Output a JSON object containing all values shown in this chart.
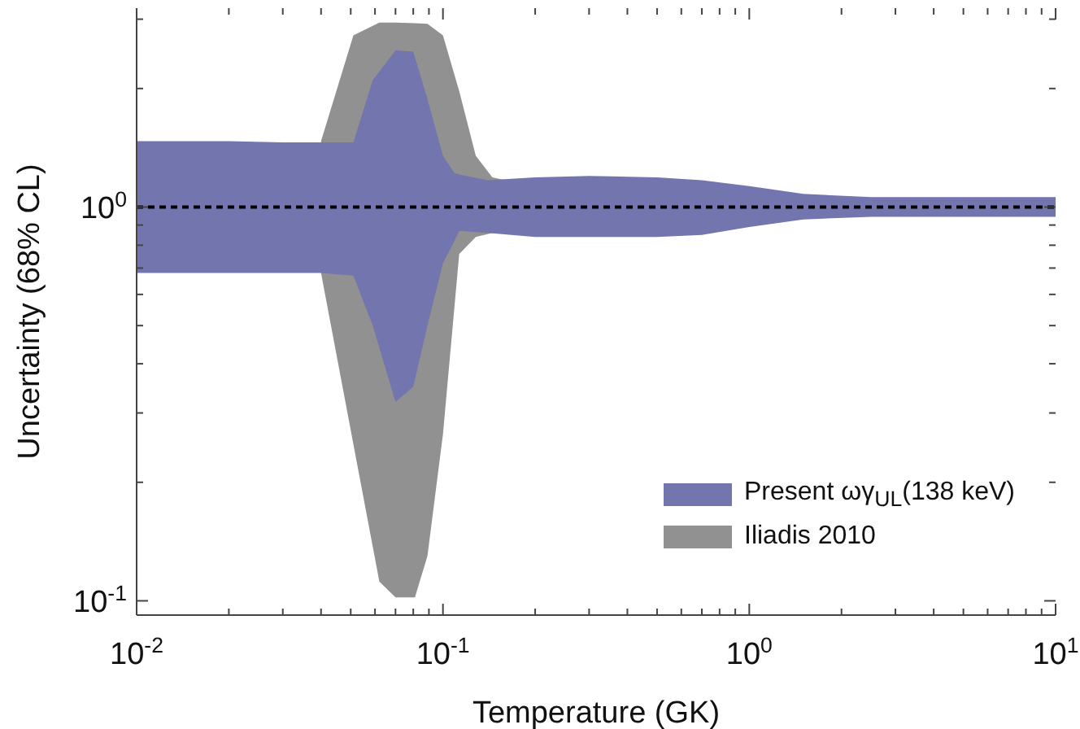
{
  "chart_data": {
    "type": "area",
    "xlabel": "Temperature (GK)",
    "ylabel": "Uncertainty (68% CL)",
    "log": "xy",
    "legend": "bottom right",
    "xlim": [
      0.01,
      10
    ],
    "ylim": [
      0.092,
      3.2
    ],
    "xticks": [
      {
        "value": 0.01,
        "label": "10$^{-2}$"
      },
      {
        "value": 0.02,
        "label": null
      },
      {
        "value": 0.03,
        "label": null
      },
      {
        "value": 0.04,
        "label": null
      },
      {
        "value": 0.05,
        "label": null
      },
      {
        "value": 0.06,
        "label": null
      },
      {
        "value": 0.07,
        "label": null
      },
      {
        "value": 0.08,
        "label": null
      },
      {
        "value": 0.09,
        "label": null
      },
      {
        "value": 0.1,
        "label": "10$^{-1}$"
      },
      {
        "value": 0.2,
        "label": null
      },
      {
        "value": 0.3,
        "label": null
      },
      {
        "value": 0.4,
        "label": null
      },
      {
        "value": 0.5,
        "label": null
      },
      {
        "value": 0.6,
        "label": null
      },
      {
        "value": 0.7,
        "label": null
      },
      {
        "value": 0.8,
        "label": null
      },
      {
        "value": 0.9,
        "label": null
      },
      {
        "value": 1,
        "label": "10$^{0}$"
      },
      {
        "value": 2,
        "label": null
      },
      {
        "value": 3,
        "label": null
      },
      {
        "value": 4,
        "label": null
      },
      {
        "value": 5,
        "label": null
      },
      {
        "value": 6,
        "label": null
      },
      {
        "value": 7,
        "label": null
      },
      {
        "value": 8,
        "label": null
      },
      {
        "value": 9,
        "label": null
      },
      {
        "value": 10,
        "label": "10$^{1}$"
      }
    ],
    "yticks": [
      {
        "value": 0.1,
        "label": "10$^{-1}$"
      },
      {
        "value": 0.2,
        "label": null
      },
      {
        "value": 0.3,
        "label": null
      },
      {
        "value": 0.4,
        "label": null
      },
      {
        "value": 0.5,
        "label": null
      },
      {
        "value": 0.6,
        "label": null
      },
      {
        "value": 0.7,
        "label": null
      },
      {
        "value": 0.8,
        "label": null
      },
      {
        "value": 0.9,
        "label": null
      },
      {
        "value": 1,
        "label": "10$^{0}$"
      },
      {
        "value": 2,
        "label": null
      },
      {
        "value": 3,
        "label": null
      }
    ],
    "series": [
      {
        "name": "Iliadis 2010",
        "color": "#909190",
        "x": [
          0.04,
          0.051,
          0.062,
          0.07,
          0.081,
          0.089,
          0.1,
          0.113,
          0.128,
          0.145,
          0.16
        ],
        "values": [
          null,
          null,
          null,
          null,
          null,
          null,
          null,
          null,
          null,
          null,
          null
        ],
        "upper": [
          1.47,
          2.73,
          2.94,
          2.94,
          2.93,
          2.92,
          2.73,
          1.97,
          1.35,
          1.19,
          1.17
        ],
        "lower": [
          0.68,
          0.25,
          0.112,
          0.102,
          0.102,
          0.13,
          0.265,
          0.76,
          0.84,
          0.86,
          0.86
        ]
      },
      {
        "name": "Present ωγ$_{UL}$(138 keV)",
        "color": "#7375ae",
        "x": [
          0.01,
          0.02,
          0.03,
          0.04,
          0.051,
          0.059,
          0.07,
          0.08,
          0.089,
          0.1,
          0.109,
          0.113,
          0.14,
          0.2,
          0.3,
          0.5,
          0.7,
          1.0,
          1.5,
          2.5,
          5,
          10
        ],
        "values": [
          null,
          null,
          null,
          null,
          null,
          null,
          null,
          null,
          null,
          null,
          null,
          null,
          null,
          null,
          null,
          null,
          null,
          null,
          null,
          null,
          null,
          null
        ],
        "upper": [
          1.47,
          1.47,
          1.46,
          1.46,
          1.46,
          2.1,
          2.5,
          2.48,
          1.88,
          1.35,
          1.22,
          1.21,
          1.17,
          1.19,
          1.2,
          1.19,
          1.17,
          1.13,
          1.08,
          1.06,
          1.06,
          1.06
        ],
        "lower": [
          0.68,
          0.68,
          0.68,
          0.68,
          0.67,
          0.5,
          0.32,
          0.35,
          0.5,
          0.72,
          0.82,
          0.87,
          0.86,
          0.84,
          0.84,
          0.84,
          0.85,
          0.89,
          0.93,
          0.945,
          0.945,
          0.945
        ]
      }
    ],
    "ref_lines": [
      {
        "axis": "y",
        "value": 1,
        "color": "#000000",
        "line_style": "dashed"
      }
    ]
  }
}
